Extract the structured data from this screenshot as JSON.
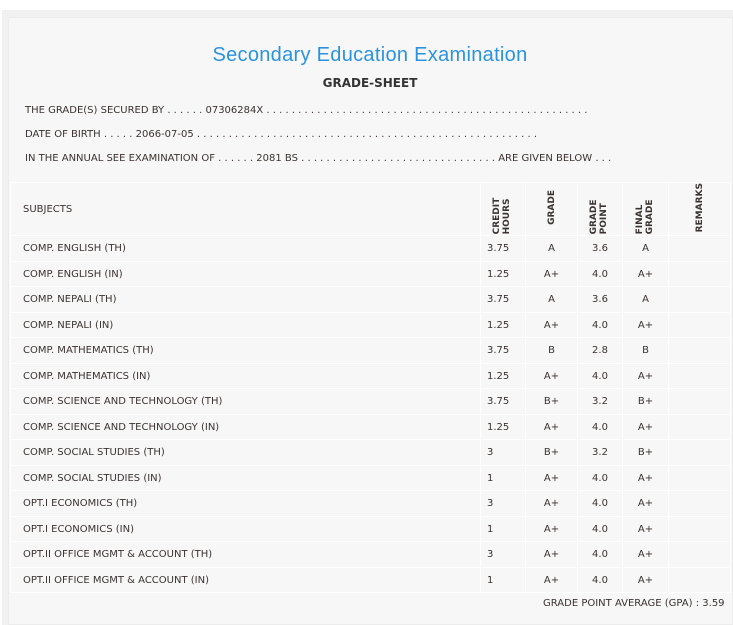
{
  "title": "Secondary Education Examination",
  "subtitle": "GRADE-SHEET",
  "info": {
    "line1": "THE GRADE(S) SECURED BY . . . . . . 07306284X . . . . . . . . . . . . . . . . . . . . . . . . . . . . . . . . . . . . . . . . . . . . . . . . . . .",
    "line2": "DATE OF BIRTH . . . . . 2066-07-05 . . . . . . . . . . . . . . . . . . . . . . . . . . . . . . . . . . . . . . . . . . . . . . . . . . . . . .",
    "line3": "IN THE ANNUAL SEE EXAMINATION OF . . . . . . 2081 BS . . . . . . . . . . . . . . . . . . . . . . . . . . . . . . . ARE GIVEN BELOW . . ."
  },
  "columns": {
    "subjects": "SUBJECTS",
    "credit": "CREDIT HOURS",
    "grade": "GRADE",
    "point": "GRADE POINT",
    "final": "FINAL GRADE",
    "remarks": "REMARKS"
  },
  "rows": [
    [
      "COMP. ENGLISH (TH)",
      "3.75",
      "A",
      "3.6",
      "A"
    ],
    [
      "COMP. ENGLISH (IN)",
      "1.25",
      "A+",
      "4.0",
      "A+"
    ],
    [
      "COMP. NEPALI (TH)",
      "3.75",
      "A",
      "3.6",
      "A"
    ],
    [
      "COMP. NEPALI (IN)",
      "1.25",
      "A+",
      "4.0",
      "A+"
    ],
    [
      "COMP. MATHEMATICS (TH)",
      "3.75",
      "B",
      "2.8",
      "B"
    ],
    [
      "COMP. MATHEMATICS (IN)",
      "1.25",
      "A+",
      "4.0",
      "A+"
    ],
    [
      "COMP. SCIENCE AND TECHNOLOGY (TH)",
      "3.75",
      "B+",
      "3.2",
      "B+"
    ],
    [
      "COMP. SCIENCE AND TECHNOLOGY (IN)",
      "1.25",
      "A+",
      "4.0",
      "A+"
    ],
    [
      "COMP. SOCIAL STUDIES (TH)",
      "3",
      "B+",
      "3.2",
      "B+"
    ],
    [
      "COMP. SOCIAL STUDIES (IN)",
      "1",
      "A+",
      "4.0",
      "A+"
    ],
    [
      "OPT.I ECONOMICS (TH)",
      "3",
      "A+",
      "4.0",
      "A+"
    ],
    [
      "OPT.I ECONOMICS (IN)",
      "1",
      "A+",
      "4.0",
      "A+"
    ],
    [
      "OPT.II OFFICE MGMT & ACCOUNT (TH)",
      "3",
      "A+",
      "4.0",
      "A+"
    ],
    [
      "OPT.II OFFICE MGMT & ACCOUNT (IN)",
      "1",
      "A+",
      "4.0",
      "A+"
    ]
  ],
  "gpa": "GRADE POINT AVERAGE (GPA) : 3.59"
}
